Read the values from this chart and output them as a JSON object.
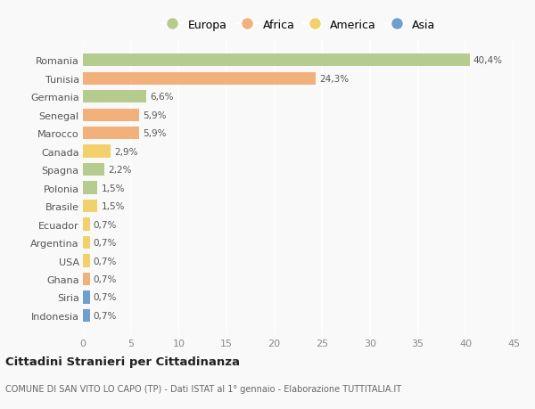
{
  "categories": [
    "Romania",
    "Tunisia",
    "Germania",
    "Senegal",
    "Marocco",
    "Canada",
    "Spagna",
    "Polonia",
    "Brasile",
    "Ecuador",
    "Argentina",
    "USA",
    "Ghana",
    "Siria",
    "Indonesia"
  ],
  "values": [
    40.4,
    24.3,
    6.6,
    5.9,
    5.9,
    2.9,
    2.2,
    1.5,
    1.5,
    0.7,
    0.7,
    0.7,
    0.7,
    0.7,
    0.7
  ],
  "labels": [
    "40,4%",
    "24,3%",
    "6,6%",
    "5,9%",
    "5,9%",
    "2,9%",
    "2,2%",
    "1,5%",
    "1,5%",
    "0,7%",
    "0,7%",
    "0,7%",
    "0,7%",
    "0,7%",
    "0,7%"
  ],
  "continents": [
    "Europa",
    "Africa",
    "Europa",
    "Africa",
    "Africa",
    "America",
    "Europa",
    "Europa",
    "America",
    "America",
    "America",
    "America",
    "Africa",
    "Asia",
    "Asia"
  ],
  "continent_colors": {
    "Europa": "#b5cc8e",
    "Africa": "#f2b07b",
    "America": "#f2d06b",
    "Asia": "#6e9fcf"
  },
  "legend_entries": [
    "Europa",
    "Africa",
    "America",
    "Asia"
  ],
  "legend_colors": [
    "#b5cc8e",
    "#f2b07b",
    "#f2d06b",
    "#6e9fcf"
  ],
  "xlim": [
    0,
    45
  ],
  "xticks": [
    0,
    5,
    10,
    15,
    20,
    25,
    30,
    35,
    40,
    45
  ],
  "title": "Cittadini Stranieri per Cittadinanza",
  "subtitle": "COMUNE DI SAN VITO LO CAPO (TP) - Dati ISTAT al 1° gennaio - Elaborazione TUTTITALIA.IT",
  "background_color": "#f9f9f9",
  "grid_color": "#ffffff",
  "bar_height": 0.7,
  "label_fontsize": 7.5,
  "ytick_fontsize": 8,
  "xtick_fontsize": 8
}
